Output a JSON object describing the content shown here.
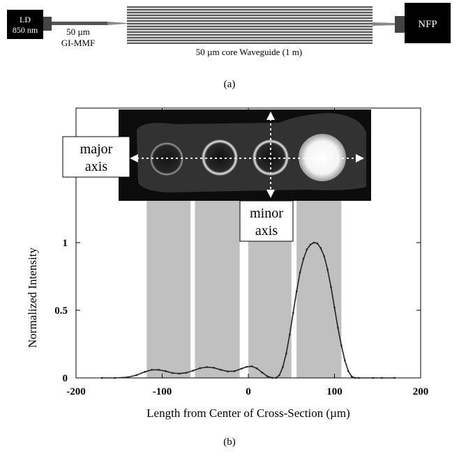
{
  "setup": {
    "ld_line1": "LD",
    "ld_line2": "850 nm",
    "fiber_line1": "50 µm",
    "fiber_line2": "GI-MMF",
    "waveguide_label": "50 µm core Waveguide (1 m)",
    "nfp_label": "NFP",
    "caption": "(a)"
  },
  "inset": {
    "major_line1": "major",
    "major_line2": "axis",
    "minor_line1": "minor",
    "minor_line2": "axis"
  },
  "caption_b": "(b)",
  "colors": {
    "band": "#c0c0c0",
    "box": "#000000",
    "waveguide_stripe_dark": "#5a5a5a",
    "waveguide_stripe_light": "#d8d8d8",
    "curve": "#222222"
  },
  "chart_data": {
    "type": "line",
    "xlabel": "Length from Center of Cross-Section (µm)",
    "ylabel": "Normalized Intensity",
    "xlim": [
      -200,
      200
    ],
    "ylim": [
      0,
      1.4
    ],
    "xticks": [
      -200,
      -100,
      0,
      100,
      200
    ],
    "xtick_labels": [
      "-200",
      "-100",
      "0",
      "100",
      "200"
    ],
    "yticks": [
      0,
      0.5,
      1
    ],
    "ytick_labels": [
      "0",
      "0.5",
      "1"
    ],
    "core_bands": [
      [
        -118,
        -67
      ],
      [
        -62,
        -10
      ],
      [
        0,
        50
      ],
      [
        56,
        108
      ]
    ],
    "series": [
      {
        "x": [
          -170,
          -155,
          -140,
          -130,
          -120,
          -112,
          -104,
          -96,
          -88,
          -80,
          -72,
          -64,
          -56,
          -48,
          -40,
          -32,
          -24,
          -16,
          -8,
          -2,
          4,
          10,
          16,
          22,
          28,
          32,
          36,
          40,
          44,
          48,
          52,
          56,
          60,
          64,
          68,
          72,
          76,
          80,
          84,
          88,
          92,
          96,
          100,
          104,
          108,
          112,
          116,
          120,
          124,
          128,
          145,
          155,
          170
        ],
        "y": [
          0.0,
          0.0,
          0.005,
          0.02,
          0.045,
          0.06,
          0.06,
          0.05,
          0.036,
          0.032,
          0.038,
          0.054,
          0.072,
          0.08,
          0.075,
          0.06,
          0.048,
          0.05,
          0.068,
          0.082,
          0.086,
          0.07,
          0.04,
          0.012,
          0.0,
          0.0,
          0.02,
          0.08,
          0.18,
          0.32,
          0.48,
          0.64,
          0.78,
          0.88,
          0.95,
          0.985,
          1.0,
          0.995,
          0.96,
          0.9,
          0.8,
          0.67,
          0.52,
          0.37,
          0.24,
          0.13,
          0.05,
          0.01,
          0.0,
          0.0,
          0.0,
          0.0,
          0.0
        ]
      }
    ]
  }
}
